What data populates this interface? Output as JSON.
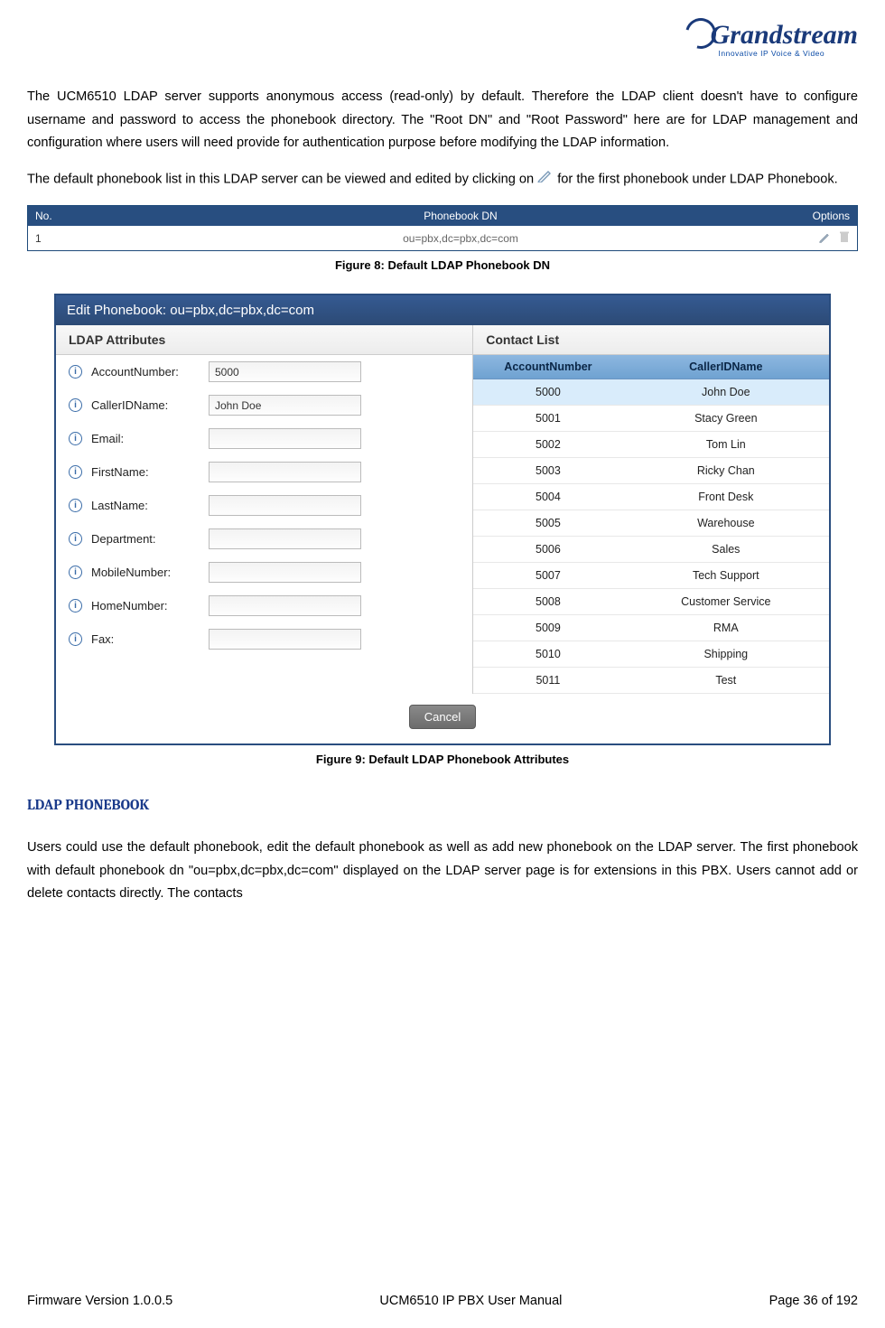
{
  "logo": {
    "brand": "Grandstream",
    "tagline": "Innovative IP Voice & Video"
  },
  "para1": "The UCM6510 LDAP server supports anonymous access (read-only) by default. Therefore the LDAP client doesn't have to configure username and password to access the phonebook directory. The \"Root DN\" and \"Root Password\" here are for LDAP management and configuration where users will need provide for authentication purpose before modifying the LDAP information.",
  "para2_a": "The default phonebook list in this LDAP server can be viewed and edited by clicking on ",
  "para2_b": " for the first phonebook under LDAP Phonebook.",
  "fig8": {
    "headers": {
      "no": "No.",
      "dn": "Phonebook DN",
      "opts": "Options"
    },
    "row": {
      "no": "1",
      "dn": "ou=pbx,dc=pbx,dc=com"
    },
    "caption": "Figure 8: Default LDAP Phonebook DN"
  },
  "fig9": {
    "title": "Edit Phonebook: ou=pbx,dc=pbx,dc=com",
    "left_header": "LDAP Attributes",
    "right_header": "Contact List",
    "attrs": [
      {
        "label": "AccountNumber:",
        "value": "5000"
      },
      {
        "label": "CallerIDName:",
        "value": "John Doe"
      },
      {
        "label": "Email:",
        "value": ""
      },
      {
        "label": "FirstName:",
        "value": ""
      },
      {
        "label": "LastName:",
        "value": ""
      },
      {
        "label": "Department:",
        "value": ""
      },
      {
        "label": "MobileNumber:",
        "value": ""
      },
      {
        "label": "HomeNumber:",
        "value": ""
      },
      {
        "label": "Fax:",
        "value": ""
      }
    ],
    "contact_headers": {
      "acc": "AccountNumber",
      "name": "CallerIDName"
    },
    "contacts": [
      {
        "acc": "5000",
        "name": "John Doe",
        "selected": true
      },
      {
        "acc": "5001",
        "name": "Stacy Green"
      },
      {
        "acc": "5002",
        "name": "Tom Lin"
      },
      {
        "acc": "5003",
        "name": "Ricky Chan"
      },
      {
        "acc": "5004",
        "name": "Front Desk"
      },
      {
        "acc": "5005",
        "name": "Warehouse"
      },
      {
        "acc": "5006",
        "name": "Sales"
      },
      {
        "acc": "5007",
        "name": "Tech Support"
      },
      {
        "acc": "5008",
        "name": "Customer Service"
      },
      {
        "acc": "5009",
        "name": "RMA"
      },
      {
        "acc": "5010",
        "name": "Shipping"
      },
      {
        "acc": "5011",
        "name": "Test"
      }
    ],
    "cancel": "Cancel",
    "caption": "Figure 9: Default LDAP Phonebook Attributes"
  },
  "section_heading": "LDAP PHONEBOOK",
  "para3": "Users could use the default phonebook, edit the default phonebook as well as add new phonebook on the LDAP server. The first phonebook with default phonebook dn \"ou=pbx,dc=pbx,dc=com\" displayed on the LDAP server page is for extensions in this PBX. Users cannot add or delete contacts directly. The contacts",
  "footer": {
    "left": "Firmware Version 1.0.0.5",
    "center": "UCM6510 IP PBX User Manual",
    "right": "Page 36 of 192"
  }
}
